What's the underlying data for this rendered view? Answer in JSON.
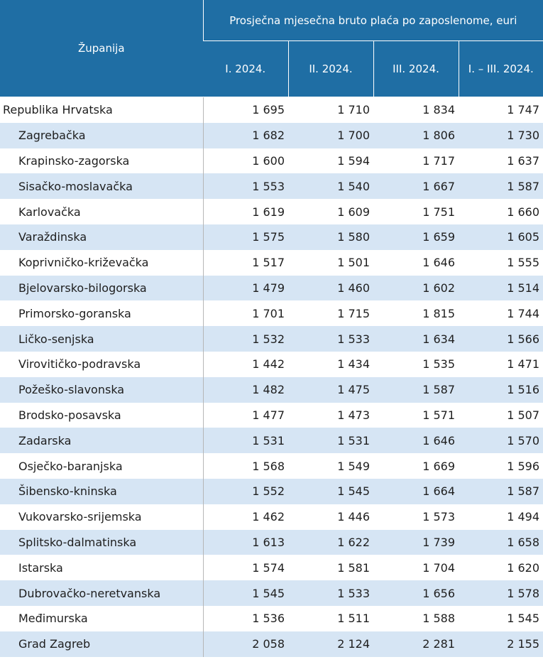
{
  "header": {
    "county_label": "Županija",
    "group_label": "Prosječna mjesečna bruto plaća po zaposlenome, eurі",
    "columns": [
      "I. 2024.",
      "II. 2024.",
      "III. 2024.",
      "I. – III. 2024."
    ]
  },
  "rows": [
    {
      "name": "Republika Hrvatska",
      "values": [
        "1 695",
        "1 710",
        "1 834",
        "1 747"
      ]
    },
    {
      "name": "Zagrebačka",
      "values": [
        "1 682",
        "1 700",
        "1 806",
        "1 730"
      ]
    },
    {
      "name": "Krapinsko-zagorska",
      "values": [
        "1 600",
        "1 594",
        "1 717",
        "1 637"
      ]
    },
    {
      "name": "Sisačko-moslavačka",
      "values": [
        "1 553",
        "1 540",
        "1 667",
        "1 587"
      ]
    },
    {
      "name": "Karlovačka",
      "values": [
        "1 619",
        "1 609",
        "1 751",
        "1 660"
      ]
    },
    {
      "name": "Varaždinska",
      "values": [
        "1 575",
        "1 580",
        "1 659",
        "1 605"
      ]
    },
    {
      "name": "Koprivničko-križevačka",
      "values": [
        "1 517",
        "1 501",
        "1 646",
        "1 555"
      ]
    },
    {
      "name": "Bjelovarsko-bilogorska",
      "values": [
        "1 479",
        "1 460",
        "1 602",
        "1 514"
      ]
    },
    {
      "name": "Primorsko-goranska",
      "values": [
        "1 701",
        "1 715",
        "1 815",
        "1 744"
      ]
    },
    {
      "name": "Ličko-senjska",
      "values": [
        "1 532",
        "1 533",
        "1 634",
        "1 566"
      ]
    },
    {
      "name": "Virovitičko-podravska",
      "values": [
        "1 442",
        "1 434",
        "1 535",
        "1 471"
      ]
    },
    {
      "name": "Požeško-slavonska",
      "values": [
        "1 482",
        "1 475",
        "1 587",
        "1 516"
      ]
    },
    {
      "name": "Brodsko-posavska",
      "values": [
        "1 477",
        "1 473",
        "1 571",
        "1 507"
      ]
    },
    {
      "name": "Zadarska",
      "values": [
        "1 531",
        "1 531",
        "1 646",
        "1 570"
      ]
    },
    {
      "name": "Osječko-baranjska",
      "values": [
        "1 568",
        "1 549",
        "1 669",
        "1 596"
      ]
    },
    {
      "name": "Šibensko-kninska",
      "values": [
        "1 552",
        "1 545",
        "1 664",
        "1 587"
      ]
    },
    {
      "name": "Vukovarsko-srijemska",
      "values": [
        "1 462",
        "1 446",
        "1 573",
        "1 494"
      ]
    },
    {
      "name": "Splitsko-dalmatinska",
      "values": [
        "1 613",
        "1 622",
        "1 739",
        "1 658"
      ]
    },
    {
      "name": "Istarska",
      "values": [
        "1 574",
        "1 581",
        "1 704",
        "1 620"
      ]
    },
    {
      "name": "Dubrovačko-neretvanska",
      "values": [
        "1 545",
        "1 533",
        "1 656",
        "1 578"
      ]
    },
    {
      "name": "Međimurska",
      "values": [
        "1 536",
        "1 511",
        "1 588",
        "1 545"
      ]
    },
    {
      "name": "Grad Zagreb",
      "values": [
        "2 058",
        "2 124",
        "2 281",
        "2 155"
      ]
    }
  ]
}
